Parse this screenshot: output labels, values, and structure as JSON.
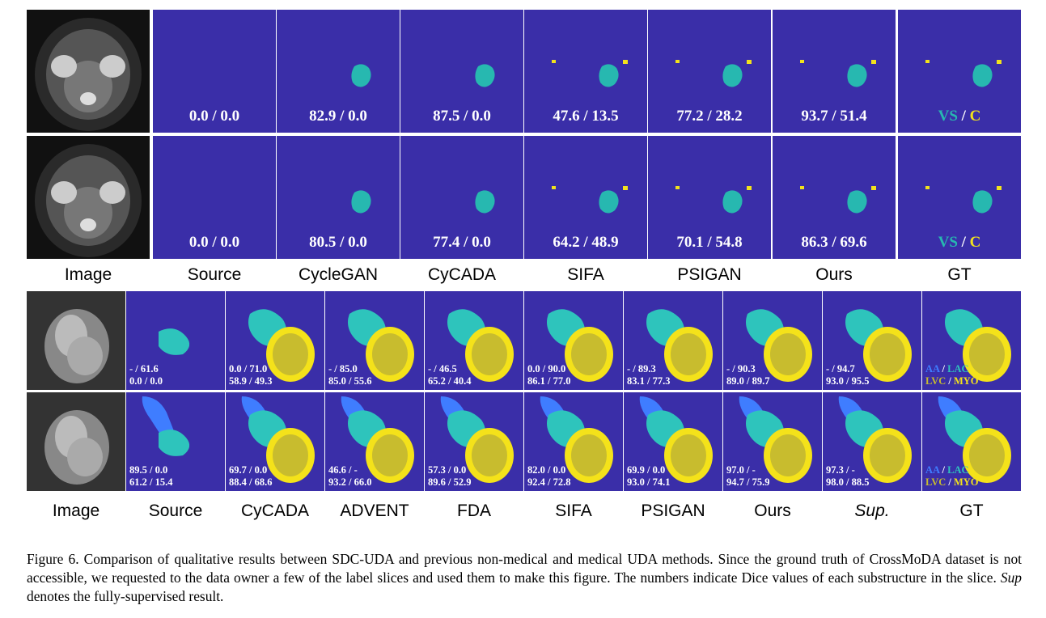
{
  "top": {
    "labels": [
      "Image",
      "Source",
      "CycleGAN",
      "CyCADA",
      "SIFA",
      "PSIGAN",
      "Ours",
      "GT"
    ],
    "rows": [
      {
        "scores": [
          "0.0 / 0.0",
          "82.9 / 0.0",
          "87.5 / 0.0",
          "47.6 / 13.5",
          "77.2 / 28.2",
          "93.7 / 51.4"
        ]
      },
      {
        "scores": [
          "0.0 / 0.0",
          "80.5 / 0.0",
          "77.4 / 0.0",
          "64.2 / 48.9",
          "70.1 / 54.8",
          "86.3 / 69.6"
        ]
      }
    ],
    "legend": {
      "vs": "VS",
      "sep": " / ",
      "c": "C"
    }
  },
  "bottom": {
    "labels": [
      "Image",
      "Source",
      "CyCADA",
      "ADVENT",
      "FDA",
      "SIFA",
      "PSIGAN",
      "Ours",
      "Sup.",
      "GT"
    ],
    "rows": [
      {
        "scores": [
          {
            "a": "- / 61.6",
            "b": "0.0 / 0.0"
          },
          {
            "a": "0.0 / 71.0",
            "b": "58.9 / 49.3"
          },
          {
            "a": "- / 85.0",
            "b": "85.0 / 55.6"
          },
          {
            "a": "- / 46.5",
            "b": "65.2 / 40.4"
          },
          {
            "a": "0.0 / 90.0",
            "b": "86.1 / 77.0"
          },
          {
            "a": "- / 89.3",
            "b": "83.1 / 77.3"
          },
          {
            "a": "- / 90.3",
            "b": "89.0 / 89.7"
          },
          {
            "a": "- / 94.7",
            "b": "93.0 / 95.5"
          }
        ]
      },
      {
        "scores": [
          {
            "a": "89.5 / 0.0",
            "b": "61.2 / 15.4"
          },
          {
            "a": "69.7 / 0.0",
            "b": "88.4 / 68.6"
          },
          {
            "a": "46.6 / -",
            "b": "93.2 / 66.0"
          },
          {
            "a": "57.3 / 0.0",
            "b": "89.6 / 52.9"
          },
          {
            "a": "82.0 / 0.0",
            "b": "92.4 / 72.8"
          },
          {
            "a": "69.9 / 0.0",
            "b": "93.0 / 74.1"
          },
          {
            "a": "97.0 / -",
            "b": "94.7 / 75.9"
          },
          {
            "a": "97.3 / -",
            "b": "98.0 / 88.5"
          }
        ]
      }
    ],
    "legend": {
      "aa": "AA",
      "s1": " / ",
      "lac": "LAC",
      "lvc": "LVC",
      "s2": " / ",
      "myo": "MYO"
    }
  },
  "caption": "Figure 6. Comparison of qualitative results between SDC-UDA and previous non-medical and medical UDA methods. Since the ground truth of CrossMoDA dataset is not accessible, we requested to the data owner a few of the label slices and used them to make this figure. The numbers indicate Dice values of each substructure in the slice. Sup denotes the fully-supervised result.",
  "caption_sup": "Sup",
  "colors": {
    "background": "#3a2ea8",
    "vs": "#27b8b0",
    "cochlea": "#f2e21c",
    "aa": "#3f7dff",
    "lac": "#2ec4bc",
    "lvc": "#c8bc2e",
    "myo": "#f4e21a"
  }
}
